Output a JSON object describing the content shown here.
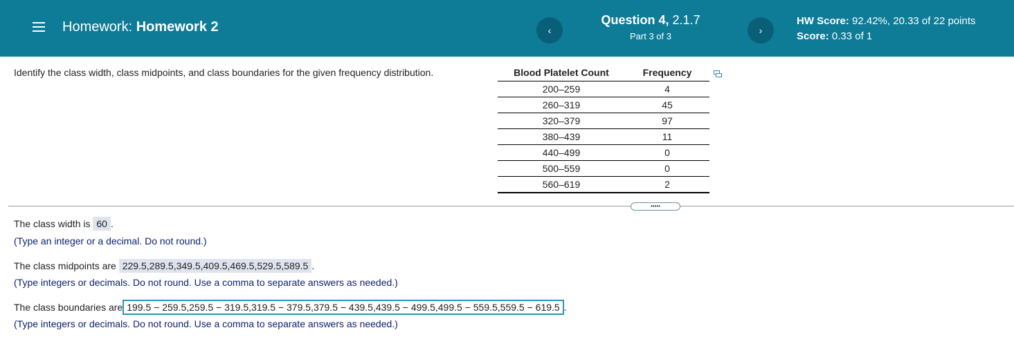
{
  "header": {
    "homework_prefix": "Homework:",
    "homework_name": "Homework 2",
    "question_label": "Question 4,",
    "question_number": "2.1.7",
    "part": "Part 3 of 3",
    "hw_score_label": "HW Score:",
    "hw_score_value": "92.42%, 20.33 of 22 points",
    "score_label": "Score:",
    "score_value": "0.33 of 1",
    "prev_glyph": "‹",
    "next_glyph": "›"
  },
  "prompt": "Identify the class width, class midpoints, and class boundaries for the given frequency distribution.",
  "table": {
    "headers": [
      "Blood Platelet Count",
      "Frequency"
    ],
    "rows": [
      [
        "200–259",
        "4"
      ],
      [
        "260–319",
        "45"
      ],
      [
        "320–379",
        "97"
      ],
      [
        "380–439",
        "11"
      ],
      [
        "440–499",
        "0"
      ],
      [
        "500–559",
        "0"
      ],
      [
        "560–619",
        "2"
      ]
    ]
  },
  "more_label": "•••••",
  "answers": {
    "width_prefix": "The class width is",
    "width_value": "60",
    "width_hint": "(Type an integer or a decimal. Do not round.)",
    "midpoints_prefix": "The class midpoints are",
    "midpoints_value": "229.5,289.5,349.5,409.5,469.5,529.5,589.5",
    "midpoints_hint": "(Type integers or decimals. Do not round. Use a comma to separate answers as needed.)",
    "boundaries_prefix": "The class boundaries are",
    "boundaries_value": "199.5 − 259.5,259.5 − 319.5,319.5 − 379.5,379.5 − 439.5,439.5 − 499.5,499.5 − 559.5,559.5 − 619.5",
    "boundaries_hint": "(Type integers or decimals. Do not round. Use a comma to separate answers as needed.)",
    "period": "."
  },
  "colors": {
    "header_bg": "#0e7b97",
    "nav_button_bg": "#0a5f78",
    "answer_bg": "#dde4ee",
    "active_border": "#2a93b4",
    "hint_text": "#0a1f6e"
  }
}
